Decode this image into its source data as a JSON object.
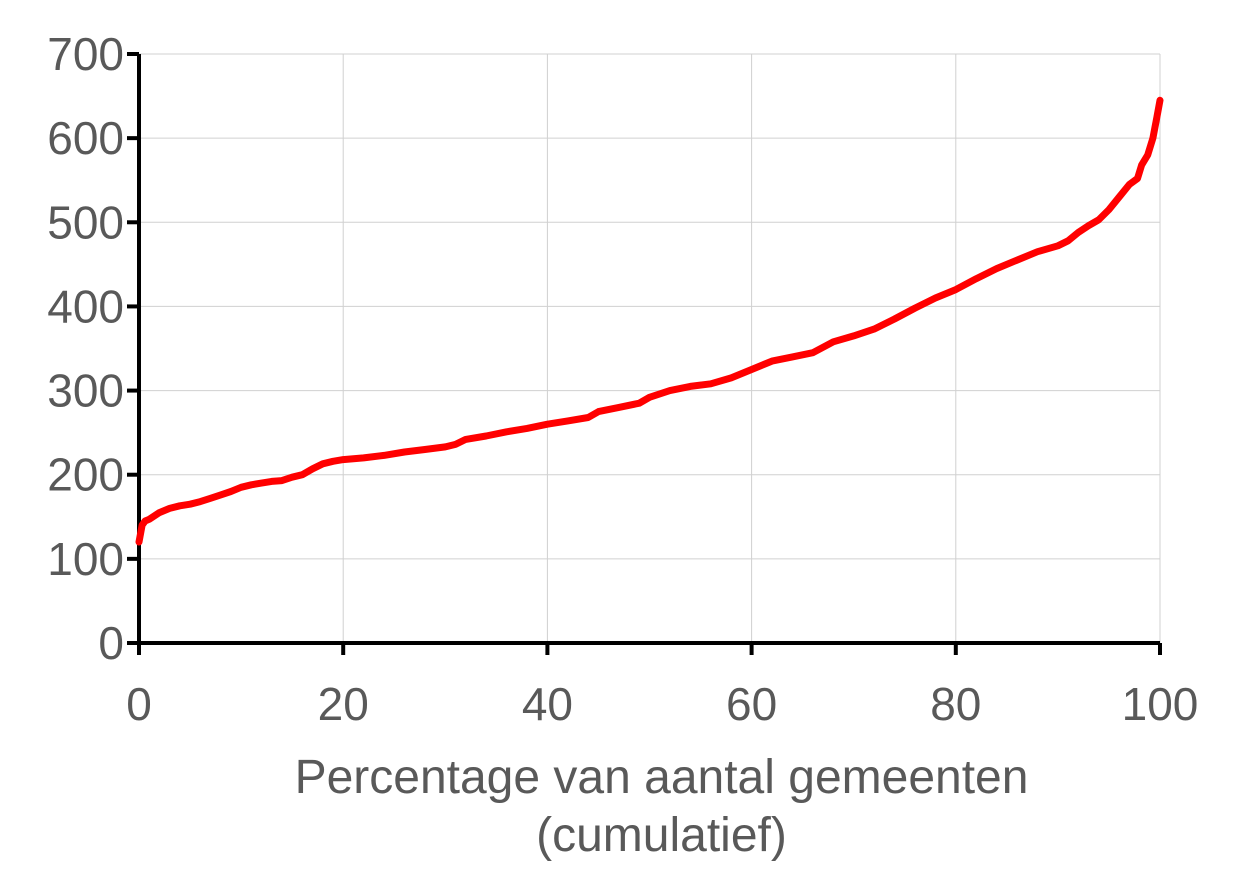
{
  "chart_data": {
    "type": "line",
    "title": "",
    "xlabel": "Percentage van aantal gemeenten (cumulatief)",
    "xlabel_lines": [
      "Percentage van aantal gemeenten",
      "(cumulatief)"
    ],
    "ylabel": "",
    "xlim": [
      0,
      100
    ],
    "ylim": [
      0,
      700
    ],
    "x_ticks": [
      0,
      20,
      40,
      60,
      80,
      100
    ],
    "y_ticks": [
      0,
      100,
      200,
      300,
      400,
      500,
      600,
      700
    ],
    "grid": true,
    "legend": "none",
    "colors": {
      "line": "#ff0000",
      "grid": "#d0d0d0",
      "axis": "#000000",
      "text": "#595959"
    },
    "series": [
      {
        "x": [
          0,
          0.3,
          0.6,
          1,
          2,
          3,
          4,
          5,
          6,
          7,
          8,
          9,
          10,
          11,
          12,
          13,
          14,
          15,
          16,
          17,
          18,
          19,
          20,
          22,
          24,
          26,
          28,
          30,
          31,
          32,
          34,
          36,
          38,
          40,
          42,
          44,
          45,
          47,
          49,
          50,
          52,
          54,
          56,
          58,
          60,
          62,
          64,
          66,
          68,
          70,
          72,
          74,
          76,
          78,
          80,
          82,
          84,
          86,
          88,
          90,
          91,
          92,
          93,
          94,
          95,
          96,
          97,
          97.8,
          98.2,
          98.8,
          99.3,
          99.7,
          100
        ],
        "y": [
          120,
          140,
          145,
          147,
          155,
          160,
          163,
          165,
          168,
          172,
          176,
          180,
          185,
          188,
          190,
          192,
          193,
          197,
          200,
          207,
          213,
          216,
          218,
          220,
          223,
          227,
          230,
          233,
          236,
          242,
          246,
          251,
          255,
          260,
          264,
          268,
          275,
          280,
          285,
          292,
          300,
          305,
          308,
          315,
          325,
          335,
          340,
          345,
          358,
          365,
          373,
          385,
          398,
          410,
          420,
          433,
          445,
          455,
          465,
          472,
          478,
          488,
          496,
          503,
          515,
          530,
          545,
          552,
          568,
          580,
          600,
          625,
          645
        ]
      }
    ]
  }
}
